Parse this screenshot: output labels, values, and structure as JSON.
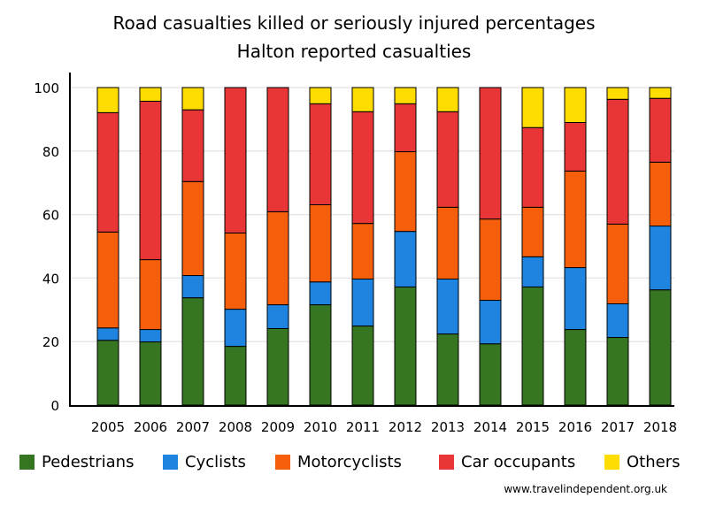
{
  "chart_data": {
    "type": "bar",
    "stacked": true,
    "title": "Road casualties killed or seriously injured percentages",
    "subtitle": "Halton reported casualties",
    "xlabel": "",
    "ylabel": "",
    "ylim": [
      0,
      100
    ],
    "yticks": [
      0,
      20,
      40,
      60,
      80,
      100
    ],
    "grid": true,
    "legend_position": "bottom",
    "categories": [
      "2005",
      "2006",
      "2007",
      "2008",
      "2009",
      "2010",
      "2011",
      "2012",
      "2013",
      "2014",
      "2015",
      "2016",
      "2017",
      "2018"
    ],
    "series": [
      {
        "name": "Pedestrians",
        "color": "#367521",
        "values": [
          20.4,
          19.9,
          33.8,
          18.5,
          24.1,
          31.6,
          24.9,
          37.2,
          22.4,
          19.3,
          37.2,
          23.8,
          21.3,
          36.3
        ]
      },
      {
        "name": "Cyclists",
        "color": "#1e84e0",
        "values": [
          3.9,
          3.9,
          7.0,
          11.7,
          7.5,
          7.2,
          14.8,
          17.5,
          17.3,
          13.7,
          9.5,
          19.5,
          10.6,
          20.1
        ]
      },
      {
        "name": "Motorcyclists",
        "color": "#f55f0c",
        "values": [
          30.2,
          22.0,
          29.6,
          24.0,
          29.3,
          24.3,
          17.5,
          25.1,
          22.6,
          25.6,
          15.6,
          30.4,
          25.1,
          20.1
        ]
      },
      {
        "name": "Car occupants",
        "color": "#e83535",
        "values": [
          37.6,
          49.9,
          22.6,
          45.8,
          39.1,
          31.8,
          35.2,
          15.1,
          30.1,
          41.4,
          25.1,
          15.3,
          39.3,
          20.1
        ]
      },
      {
        "name": "Others",
        "color": "#ffdd00",
        "values": [
          7.9,
          4.3,
          7.0,
          0,
          0,
          5.1,
          7.6,
          5.1,
          7.6,
          0,
          12.6,
          11.0,
          3.7,
          3.4
        ]
      }
    ]
  },
  "source": "www.travelindependent.org.uk"
}
